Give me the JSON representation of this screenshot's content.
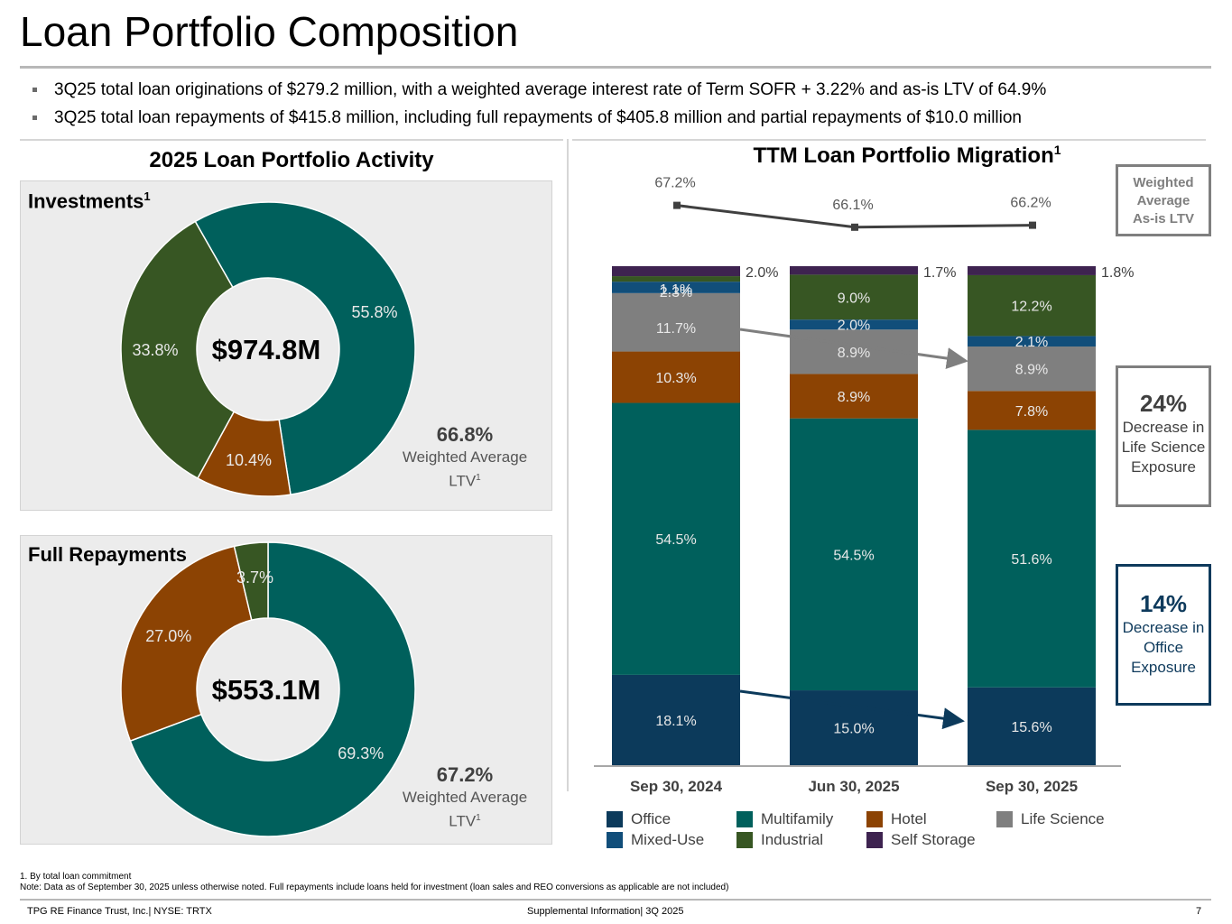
{
  "title": "Loan Portfolio Composition",
  "bullets": [
    "3Q25 total loan originations of $279.2 million, with a weighted average interest rate of Term SOFR + 3.22% and as-is LTV of 64.9%",
    "3Q25 total loan repayments of $415.8 million, including full repayments of $405.8 million and partial repayments of $10.0 million"
  ],
  "left_panel": {
    "title": "2025 Loan Portfolio Activity",
    "investments": {
      "label": "Investments",
      "label_sup": "1",
      "total": "$974.8M",
      "ltv_value": "66.8%",
      "ltv_label": "Weighted Average",
      "ltv_label2": "LTV",
      "ltv_sup": "1"
    },
    "repayments": {
      "label": "Full Repayments",
      "total": "$553.1M",
      "ltv_value": "67.2%",
      "ltv_label": "Weighted Average",
      "ltv_label2": "LTV",
      "ltv_sup": "1"
    }
  },
  "right_panel": {
    "title": "TTM Loan Portfolio Migration",
    "title_sup": "1",
    "ltv_legend": [
      "Weighted",
      "Average",
      "As-is LTV"
    ],
    "callout_life": {
      "value": "24%",
      "lines": [
        "Decrease in",
        "Life Science",
        "Exposure"
      ]
    },
    "callout_office": {
      "value": "14%",
      "lines": [
        "Decrease in",
        "Office",
        "Exposure"
      ]
    }
  },
  "colors": {
    "Office": "#0c3a5b",
    "Mixed-Use": "#114e7a",
    "Multifamily": "#00605c",
    "Hotel": "#8c4303",
    "Industrial": "#375623",
    "Life Science": "#7f7f7f",
    "Self Storage": "#3e2350"
  },
  "legend": {
    "Office": "Office",
    "Mixed-Use": "Mixed-Use",
    "Multifamily": "Multifamily",
    "Industrial": "Industrial",
    "Hotel": "Hotel",
    "Self Storage": "Self Storage",
    "Life Science": "Life Science"
  },
  "chart_data": [
    {
      "type": "pie",
      "title": "Investments",
      "labels": [
        "Multifamily",
        "Hotel",
        "Industrial"
      ],
      "values": [
        55.8,
        10.4,
        33.8
      ],
      "data_labels": [
        "55.8%",
        "10.4%",
        "33.8%"
      ],
      "center_label": "$974.8M"
    },
    {
      "type": "pie",
      "title": "Full Repayments",
      "labels": [
        "Multifamily",
        "Hotel",
        "Industrial"
      ],
      "values": [
        69.3,
        27.0,
        3.7
      ],
      "data_labels": [
        "69.3%",
        "27.0%",
        "3.7%"
      ],
      "center_label": "$553.1M"
    },
    {
      "type": "bar",
      "stacked": true,
      "title": "TTM Loan Portfolio Migration",
      "categories": [
        "Sep 30, 2024",
        "Jun 30, 2025",
        "Sep 30, 2025"
      ],
      "series": [
        {
          "name": "Office",
          "values": [
            18.1,
            15.0,
            15.6
          ],
          "labels": [
            "18.1%",
            "15.0%",
            "15.6%"
          ]
        },
        {
          "name": "Multifamily",
          "values": [
            54.5,
            54.5,
            51.6
          ],
          "labels": [
            "54.5%",
            "54.5%",
            "51.6%"
          ]
        },
        {
          "name": "Hotel",
          "values": [
            10.3,
            8.9,
            7.8
          ],
          "labels": [
            "10.3%",
            "8.9%",
            "7.8%"
          ]
        },
        {
          "name": "Life Science",
          "values": [
            11.7,
            8.9,
            8.9
          ],
          "labels": [
            "11.7%",
            "8.9%",
            "8.9%"
          ]
        },
        {
          "name": "Mixed-Use",
          "values": [
            2.3,
            2.0,
            2.1
          ],
          "labels": [
            "2.3%",
            "2.0%",
            "2.1%"
          ]
        },
        {
          "name": "Industrial",
          "values": [
            1.1,
            9.0,
            12.2
          ],
          "labels": [
            "1.1%",
            "9.0%",
            "12.2%"
          ]
        },
        {
          "name": "Self Storage",
          "values": [
            2.0,
            1.7,
            1.8
          ],
          "labels": [
            "2.0%",
            "1.7%",
            "1.8%"
          ]
        }
      ],
      "line": {
        "name": "Weighted Average As-is LTV",
        "values": [
          67.2,
          66.1,
          66.2
        ],
        "labels": [
          "67.2%",
          "66.1%",
          "66.2%"
        ]
      }
    }
  ],
  "footnotes": [
    "1. By total loan commitment",
    "Note: Data as of September 30, 2025 unless otherwise noted. Full repayments include loans held for investment (loan sales and REO conversions as applicable are not included)"
  ],
  "footer": {
    "left": "TPG RE Finance Trust, Inc.| NYSE: TRTX",
    "center": "Supplemental Information| 3Q 2025",
    "page": "7"
  }
}
